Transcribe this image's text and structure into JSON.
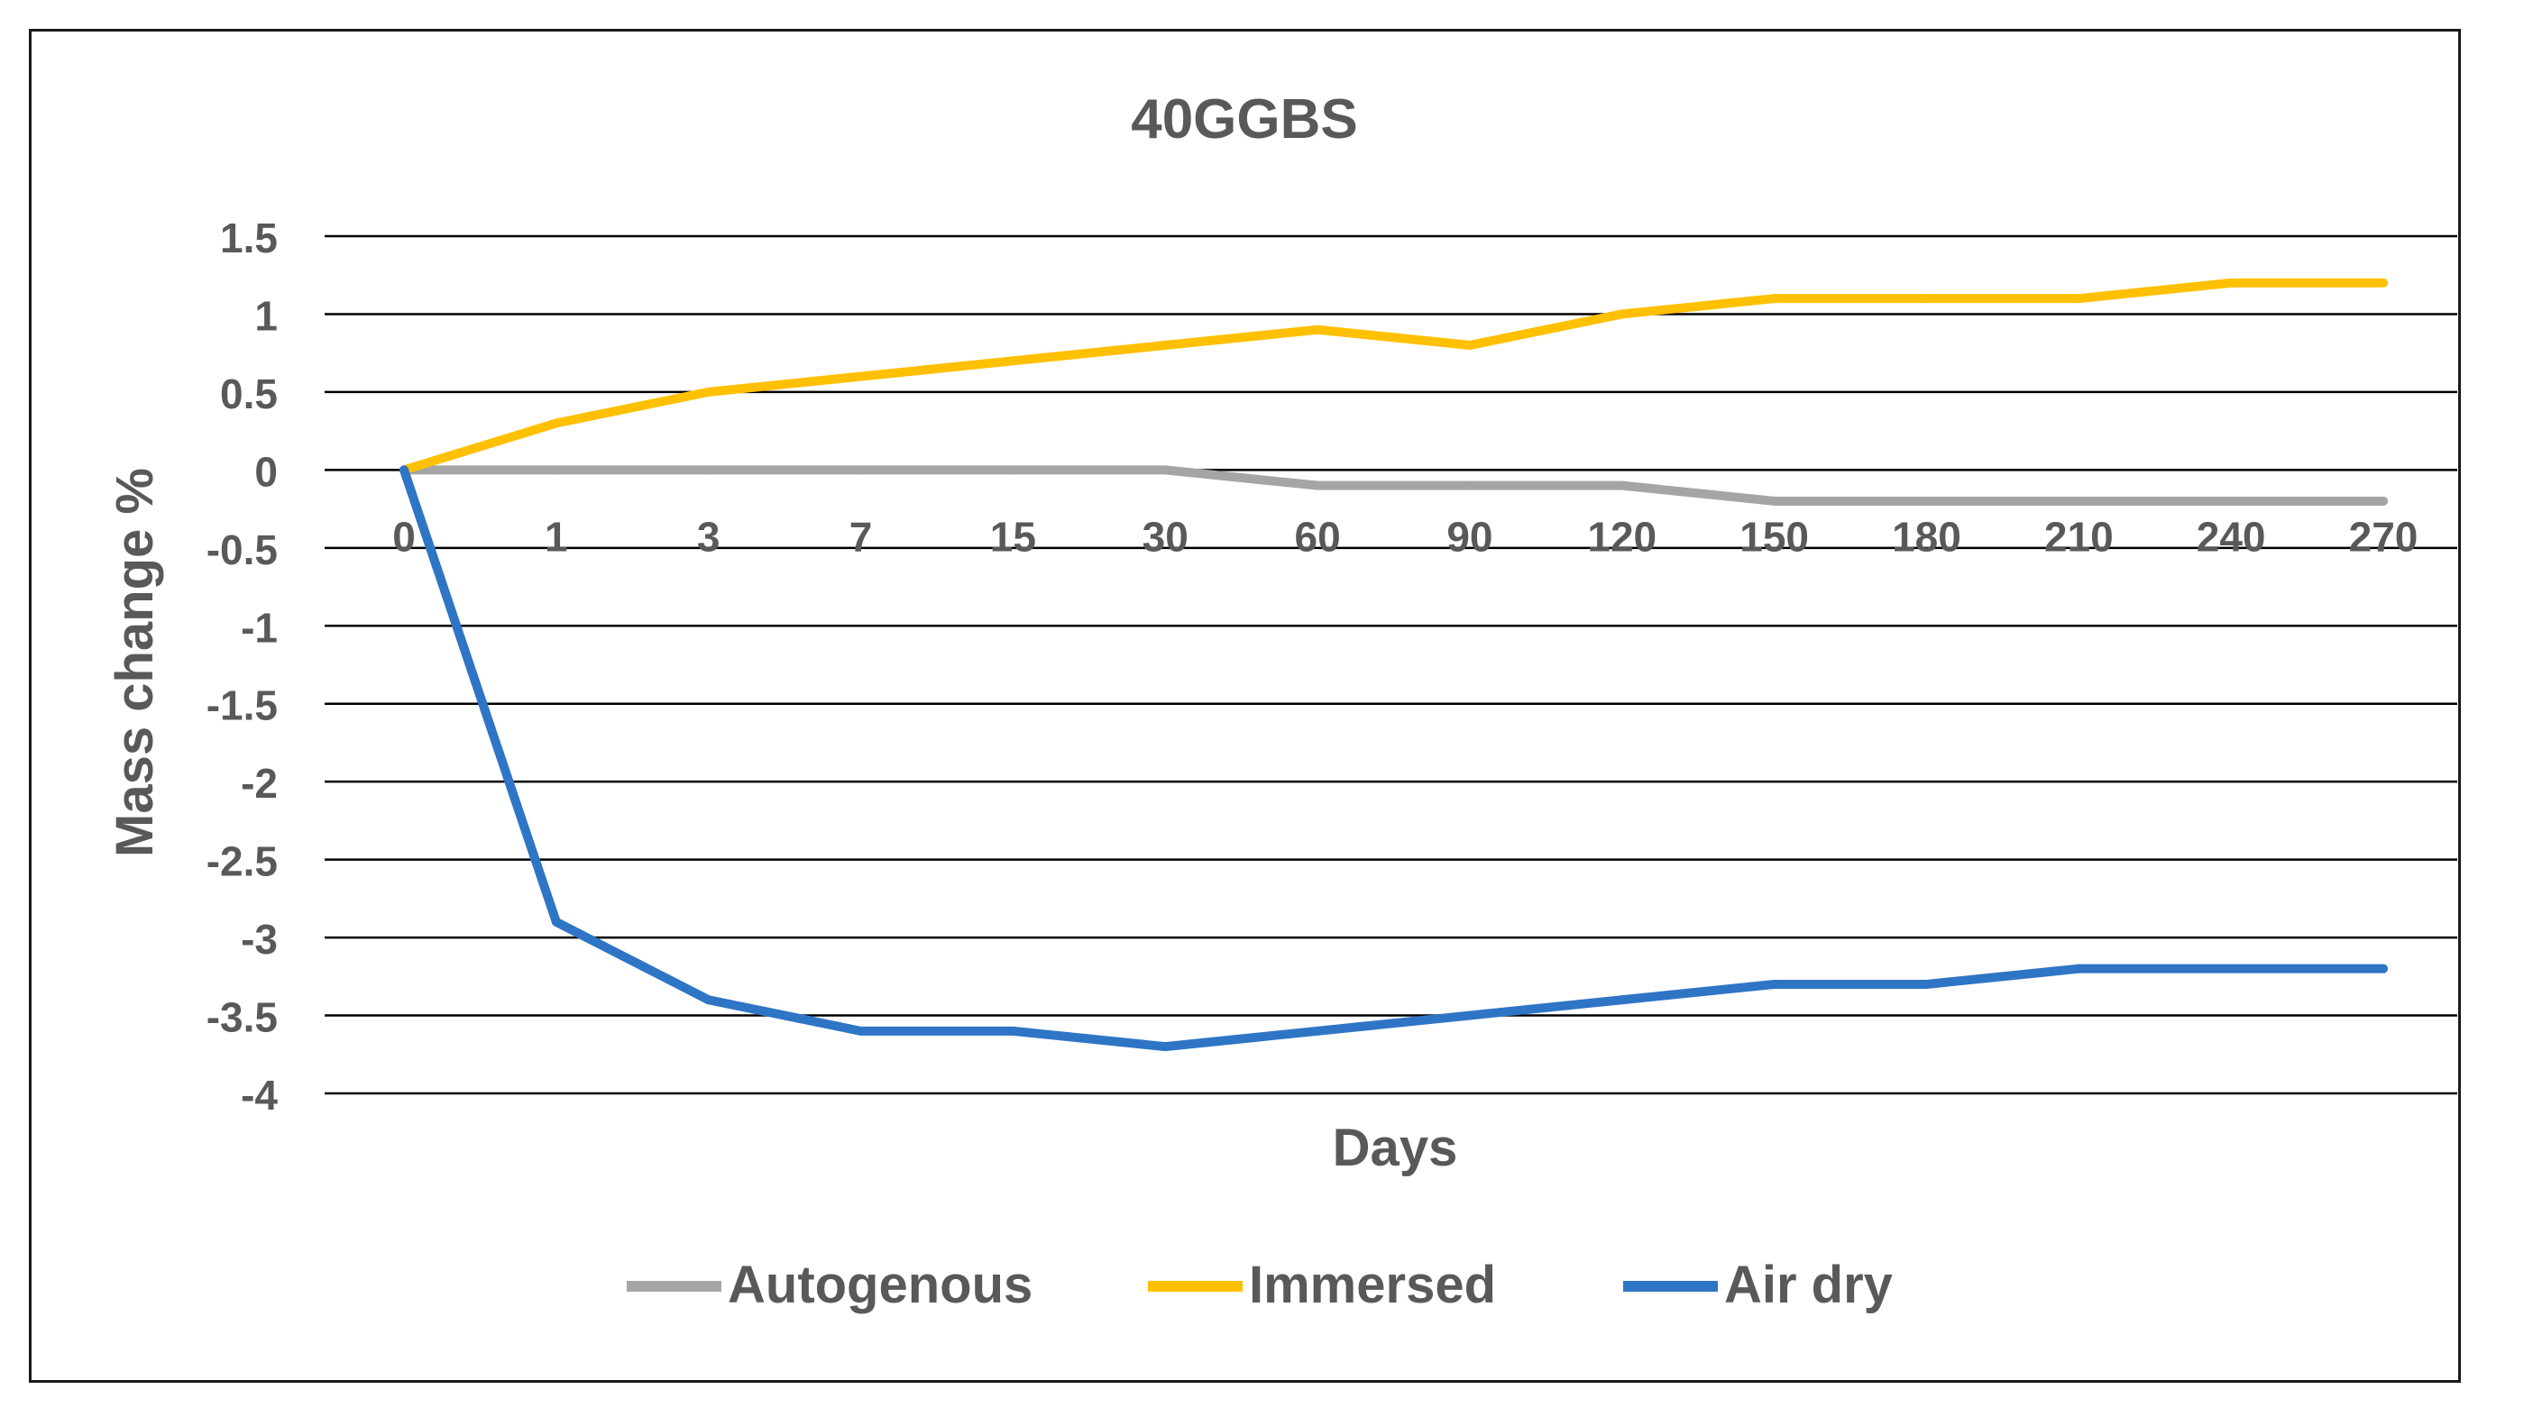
{
  "chart_data": {
    "type": "line",
    "title": "40GGBS",
    "xlabel": "Days",
    "ylabel": "Mass change %",
    "categories": [
      "0",
      "1",
      "3",
      "7",
      "15",
      "30",
      "60",
      "90",
      "120",
      "150",
      "180",
      "210",
      "240",
      "270"
    ],
    "ylim": [
      -4,
      1.5
    ],
    "yticks": [
      1.5,
      1,
      0.5,
      0,
      -0.5,
      -1,
      -1.5,
      -2,
      -2.5,
      -3,
      -3.5,
      -4
    ],
    "ytick_labels": [
      "1.5",
      "1",
      "0.5",
      "0",
      "-0.5",
      "-1",
      "-1.5",
      "-2",
      "-2.5",
      "-3",
      "-3.5",
      "-4"
    ],
    "grid": true,
    "legend_position": "bottom",
    "series": [
      {
        "name": "Autogenous",
        "color": "#a5a5a5",
        "values": [
          0,
          0,
          0,
          0,
          0,
          0,
          -0.1,
          -0.1,
          -0.1,
          -0.2,
          -0.2,
          -0.2,
          -0.2,
          -0.2
        ]
      },
      {
        "name": "Immersed",
        "color": "#ffc000",
        "values": [
          0,
          0.3,
          0.5,
          0.6,
          0.7,
          0.8,
          0.9,
          0.8,
          1.0,
          1.1,
          1.1,
          1.1,
          1.2,
          1.2
        ]
      },
      {
        "name": "Air dry",
        "color": "#2f75c5",
        "values": [
          0,
          -2.9,
          -3.4,
          -3.6,
          -3.6,
          -3.7,
          -3.6,
          -3.5,
          -3.4,
          -3.3,
          -3.3,
          -3.2,
          -3.2,
          -3.2
        ]
      }
    ],
    "colors": {
      "text": "#595959",
      "gridline": "#000000",
      "frame": "#1a1a1a"
    }
  }
}
